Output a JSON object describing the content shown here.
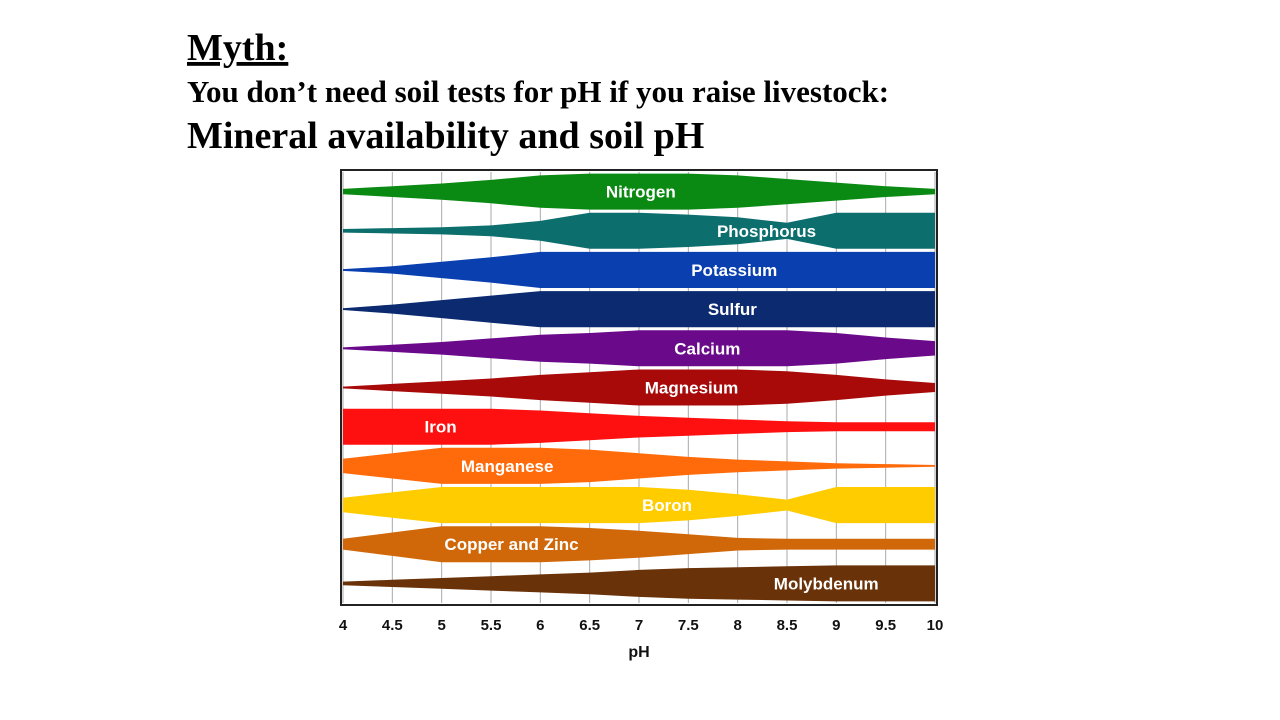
{
  "slide": {
    "heading": "Myth:",
    "subtitle": "You don’t need soil tests for pH if you raise livestock:",
    "title": "Mineral availability and soil pH"
  },
  "chart_data": {
    "type": "band",
    "xlabel": "pH",
    "x": [
      4,
      4.5,
      5,
      5.5,
      6,
      6.5,
      7,
      7.5,
      8,
      8.5,
      9,
      9.5,
      10
    ],
    "xlim": [
      4,
      10
    ],
    "xticks": [
      4,
      4.5,
      5,
      5.5,
      6,
      6.5,
      7,
      7.5,
      8,
      8.5,
      9,
      9.5,
      10
    ],
    "grid": true,
    "series": [
      {
        "name": "Nitrogen",
        "color": "#0a8a12",
        "values": [
          0.15,
          0.3,
          0.45,
          0.65,
          0.9,
          1,
          1,
          1,
          0.9,
          0.7,
          0.5,
          0.3,
          0.15
        ]
      },
      {
        "name": "Phosphorus",
        "color": "#0d6e6e",
        "values": [
          0.1,
          0.15,
          0.2,
          0.3,
          0.55,
          1,
          1,
          0.9,
          0.75,
          0.45,
          1,
          1,
          1
        ]
      },
      {
        "name": "Potassium",
        "color": "#0a3fb0",
        "values": [
          0.05,
          0.2,
          0.45,
          0.7,
          1,
          1,
          1,
          1,
          1,
          1,
          1,
          1,
          1
        ]
      },
      {
        "name": "Sulfur",
        "color": "#0b2a70",
        "values": [
          0.05,
          0.25,
          0.5,
          0.75,
          1,
          1,
          1,
          1,
          1,
          1,
          1,
          1,
          1
        ]
      },
      {
        "name": "Calcium",
        "color": "#6a0a8a",
        "values": [
          0.05,
          0.2,
          0.35,
          0.55,
          0.75,
          0.85,
          1,
          1,
          1,
          1,
          0.85,
          0.6,
          0.4
        ]
      },
      {
        "name": "Magnesium",
        "color": "#a80a0a",
        "values": [
          0.05,
          0.2,
          0.35,
          0.5,
          0.7,
          0.85,
          1,
          1,
          1,
          0.9,
          0.7,
          0.45,
          0.25
        ]
      },
      {
        "name": "Iron",
        "color": "#ff1010",
        "values": [
          1,
          1,
          1,
          1,
          0.9,
          0.75,
          0.6,
          0.5,
          0.4,
          0.3,
          0.25,
          0.25,
          0.25
        ]
      },
      {
        "name": "Manganese",
        "color": "#ff6a0a",
        "values": [
          0.4,
          0.7,
          1,
          1,
          1,
          0.9,
          0.7,
          0.5,
          0.35,
          0.25,
          0.15,
          0.1,
          0.05
        ]
      },
      {
        "name": "Boron",
        "color": "#ffcc00",
        "values": [
          0.4,
          0.7,
          1,
          1,
          1,
          1,
          1,
          0.85,
          0.6,
          0.3,
          1,
          1,
          1
        ]
      },
      {
        "name": "Copper and Zinc",
        "color": "#d0680a",
        "values": [
          0.3,
          0.65,
          1,
          1,
          1,
          0.9,
          0.75,
          0.55,
          0.35,
          0.3,
          0.3,
          0.3,
          0.3
        ]
      },
      {
        "name": "Molybdenum",
        "color": "#6a3208",
        "values": [
          0.1,
          0.2,
          0.3,
          0.4,
          0.5,
          0.6,
          0.75,
          0.85,
          0.9,
          0.95,
          1,
          1,
          1
        ]
      }
    ]
  }
}
